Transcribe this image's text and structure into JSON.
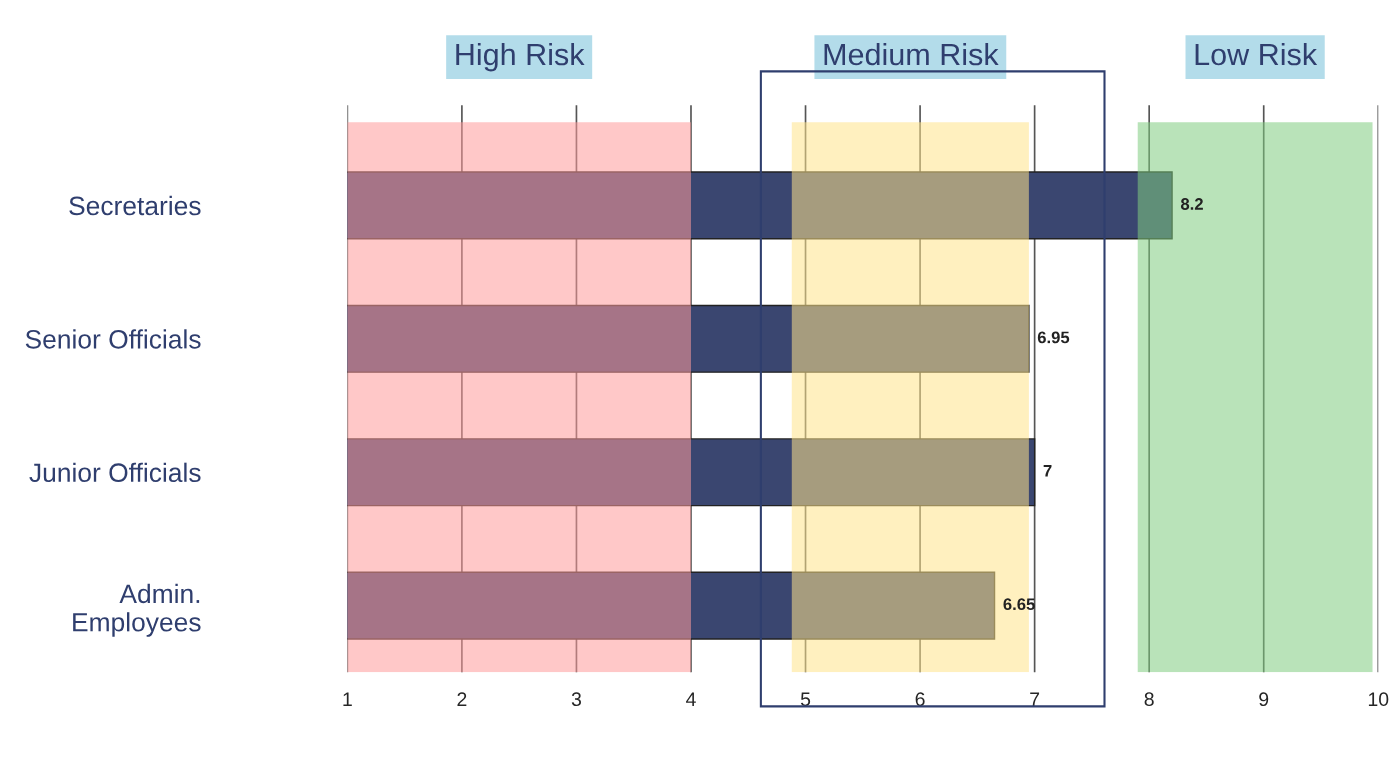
{
  "chart_data": {
    "type": "bar",
    "orientation": "horizontal",
    "categories": [
      "Secretaries",
      "Senior Officials",
      "Junior Officials",
      "Admin.\nEmployees"
    ],
    "values": [
      8.2,
      6.95,
      7,
      6.65
    ],
    "color": "#3a4670",
    "xlim": [
      1,
      10
    ],
    "xticks": [
      1,
      2,
      3,
      4,
      5,
      6,
      7,
      8,
      9,
      10
    ],
    "grid": "x",
    "data_labels": true,
    "bands": [
      {
        "axis": "x",
        "from": 1,
        "to": 4,
        "label": "High Risk",
        "color": "#ff9a9a"
      },
      {
        "axis": "x",
        "from": 4.88,
        "to": 6.95,
        "label": "Medium Risk",
        "color": "#ffe48a"
      },
      {
        "axis": "x",
        "from": 7.9,
        "to": 9.95,
        "label": "Low Risk",
        "color": "#7fcc7f"
      }
    ]
  }
}
